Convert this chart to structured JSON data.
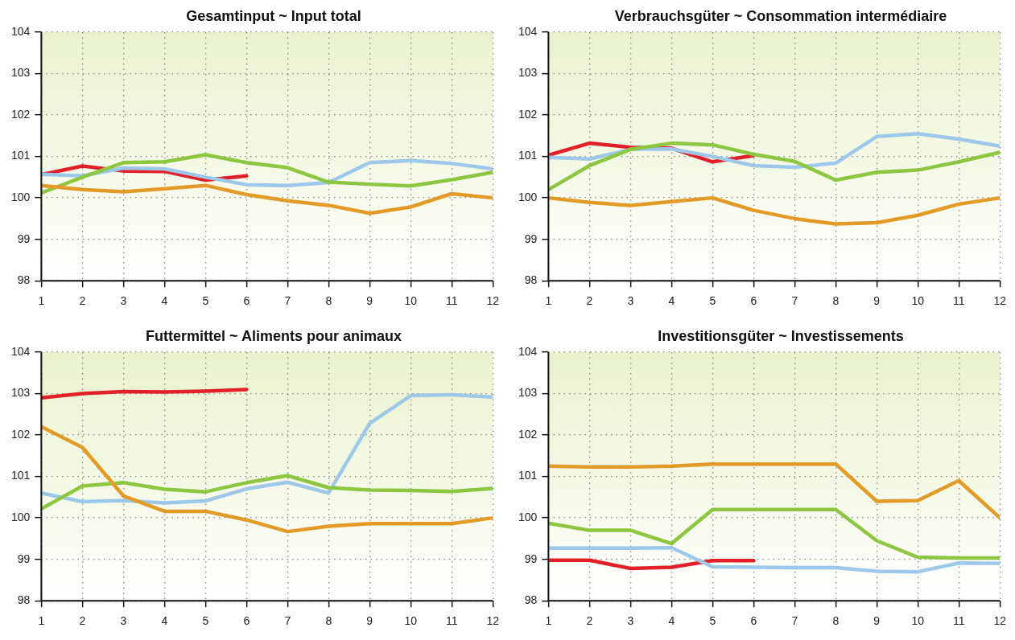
{
  "chart_data": [
    {
      "type": "line",
      "title": "Gesamtinput ~ Input total",
      "x": [
        1,
        2,
        3,
        4,
        5,
        6,
        7,
        8,
        9,
        10,
        11,
        12
      ],
      "xlim": [
        1,
        12
      ],
      "xticks": [
        1,
        2,
        3,
        4,
        5,
        6,
        7,
        8,
        9,
        10,
        11,
        12
      ],
      "ylim": [
        98,
        104
      ],
      "yticks": [
        98,
        99,
        100,
        101,
        102,
        103,
        104
      ],
      "grid": true,
      "legend": false,
      "marker": "none",
      "line_style": "solid",
      "series": [
        {
          "color": "#e39a26",
          "values": [
            100.3,
            100.2,
            100.15,
            100.22,
            100.3,
            100.08,
            99.93,
            99.82,
            99.63,
            99.78,
            100.1,
            100.0
          ]
        },
        {
          "color": "#8dc63f",
          "values": [
            100.12,
            100.5,
            100.85,
            100.87,
            101.04,
            100.85,
            100.73,
            100.38,
            100.33,
            100.29,
            100.44,
            100.62
          ]
        },
        {
          "color": "#9dc8ea",
          "values": [
            100.57,
            100.53,
            100.72,
            100.7,
            100.5,
            100.32,
            100.3,
            100.37,
            100.85,
            100.9,
            100.83,
            100.7
          ]
        },
        {
          "color": "#e3202a",
          "values": [
            100.56,
            100.77,
            100.65,
            100.64,
            100.43,
            100.53,
            null,
            null,
            null,
            null,
            null,
            null
          ]
        }
      ]
    },
    {
      "type": "line",
      "title": "Verbrauchsgüter ~ Consommation intermédiaire",
      "x": [
        1,
        2,
        3,
        4,
        5,
        6,
        7,
        8,
        9,
        10,
        11,
        12
      ],
      "xlim": [
        1,
        12
      ],
      "xticks": [
        1,
        2,
        3,
        4,
        5,
        6,
        7,
        8,
        9,
        10,
        11,
        12
      ],
      "ylim": [
        98,
        104
      ],
      "yticks": [
        98,
        99,
        100,
        101,
        102,
        103,
        104
      ],
      "grid": true,
      "legend": false,
      "marker": "none",
      "line_style": "solid",
      "series": [
        {
          "color": "#e39a26",
          "values": [
            100.0,
            99.89,
            99.82,
            99.91,
            100.0,
            99.7,
            99.5,
            99.37,
            99.4,
            99.58,
            99.85,
            100.0
          ]
        },
        {
          "color": "#8dc63f",
          "values": [
            100.2,
            100.78,
            101.17,
            101.32,
            101.28,
            101.05,
            100.88,
            100.43,
            100.62,
            100.67,
            100.87,
            101.1
          ]
        },
        {
          "color": "#9dc8ea",
          "values": [
            100.98,
            100.94,
            101.17,
            101.18,
            101.0,
            100.78,
            100.74,
            100.84,
            101.48,
            101.55,
            101.42,
            101.25
          ]
        },
        {
          "color": "#e3202a",
          "values": [
            101.03,
            101.32,
            101.22,
            101.2,
            100.87,
            101.02,
            null,
            null,
            null,
            null,
            null,
            null
          ]
        }
      ]
    },
    {
      "type": "line",
      "title": "Futtermittel ~ Aliments pour animaux",
      "x": [
        1,
        2,
        3,
        4,
        5,
        6,
        7,
        8,
        9,
        10,
        11,
        12
      ],
      "xlim": [
        1,
        12
      ],
      "xticks": [
        1,
        2,
        3,
        4,
        5,
        6,
        7,
        8,
        9,
        10,
        11,
        12
      ],
      "ylim": [
        98,
        104
      ],
      "yticks": [
        98,
        99,
        100,
        101,
        102,
        103,
        104
      ],
      "grid": true,
      "legend": false,
      "marker": "none",
      "line_style": "solid",
      "series": [
        {
          "color": "#e39a26",
          "values": [
            102.2,
            101.7,
            100.53,
            100.16,
            100.16,
            99.95,
            99.67,
            99.8,
            99.86,
            99.86,
            99.86,
            100.0
          ]
        },
        {
          "color": "#8dc63f",
          "values": [
            100.22,
            100.77,
            100.85,
            100.69,
            100.63,
            100.85,
            101.02,
            100.73,
            100.67,
            100.66,
            100.64,
            100.71
          ]
        },
        {
          "color": "#9dc8ea",
          "values": [
            100.6,
            100.39,
            100.42,
            100.36,
            100.41,
            100.7,
            100.86,
            100.6,
            102.28,
            102.95,
            102.97,
            102.92
          ]
        },
        {
          "color": "#e3202a",
          "values": [
            102.9,
            103.0,
            103.05,
            103.04,
            103.06,
            103.1,
            null,
            null,
            null,
            null,
            null,
            null
          ]
        }
      ]
    },
    {
      "type": "line",
      "title": "Investitionsgüter ~ Investissements",
      "x": [
        1,
        2,
        3,
        4,
        5,
        6,
        7,
        8,
        9,
        10,
        11,
        12
      ],
      "xlim": [
        1,
        12
      ],
      "xticks": [
        1,
        2,
        3,
        4,
        5,
        6,
        7,
        8,
        9,
        10,
        11,
        12
      ],
      "ylim": [
        98,
        104
      ],
      "yticks": [
        98,
        99,
        100,
        101,
        102,
        103,
        104
      ],
      "grid": true,
      "legend": false,
      "marker": "none",
      "line_style": "solid",
      "series": [
        {
          "color": "#e39a26",
          "values": [
            101.25,
            101.23,
            101.23,
            101.25,
            101.3,
            101.3,
            101.3,
            101.3,
            100.4,
            100.42,
            100.9,
            100.0
          ]
        },
        {
          "color": "#8dc63f",
          "values": [
            99.87,
            99.7,
            99.7,
            99.38,
            100.2,
            100.2,
            100.2,
            100.2,
            99.45,
            99.05,
            99.03,
            99.03
          ]
        },
        {
          "color": "#9dc8ea",
          "values": [
            99.27,
            99.27,
            99.27,
            99.28,
            98.82,
            98.81,
            98.8,
            98.8,
            98.71,
            98.7,
            98.91,
            98.9
          ]
        },
        {
          "color": "#e3202a",
          "values": [
            98.98,
            98.98,
            98.78,
            98.81,
            98.97,
            98.97,
            null,
            null,
            null,
            null,
            null,
            null
          ]
        }
      ]
    }
  ]
}
